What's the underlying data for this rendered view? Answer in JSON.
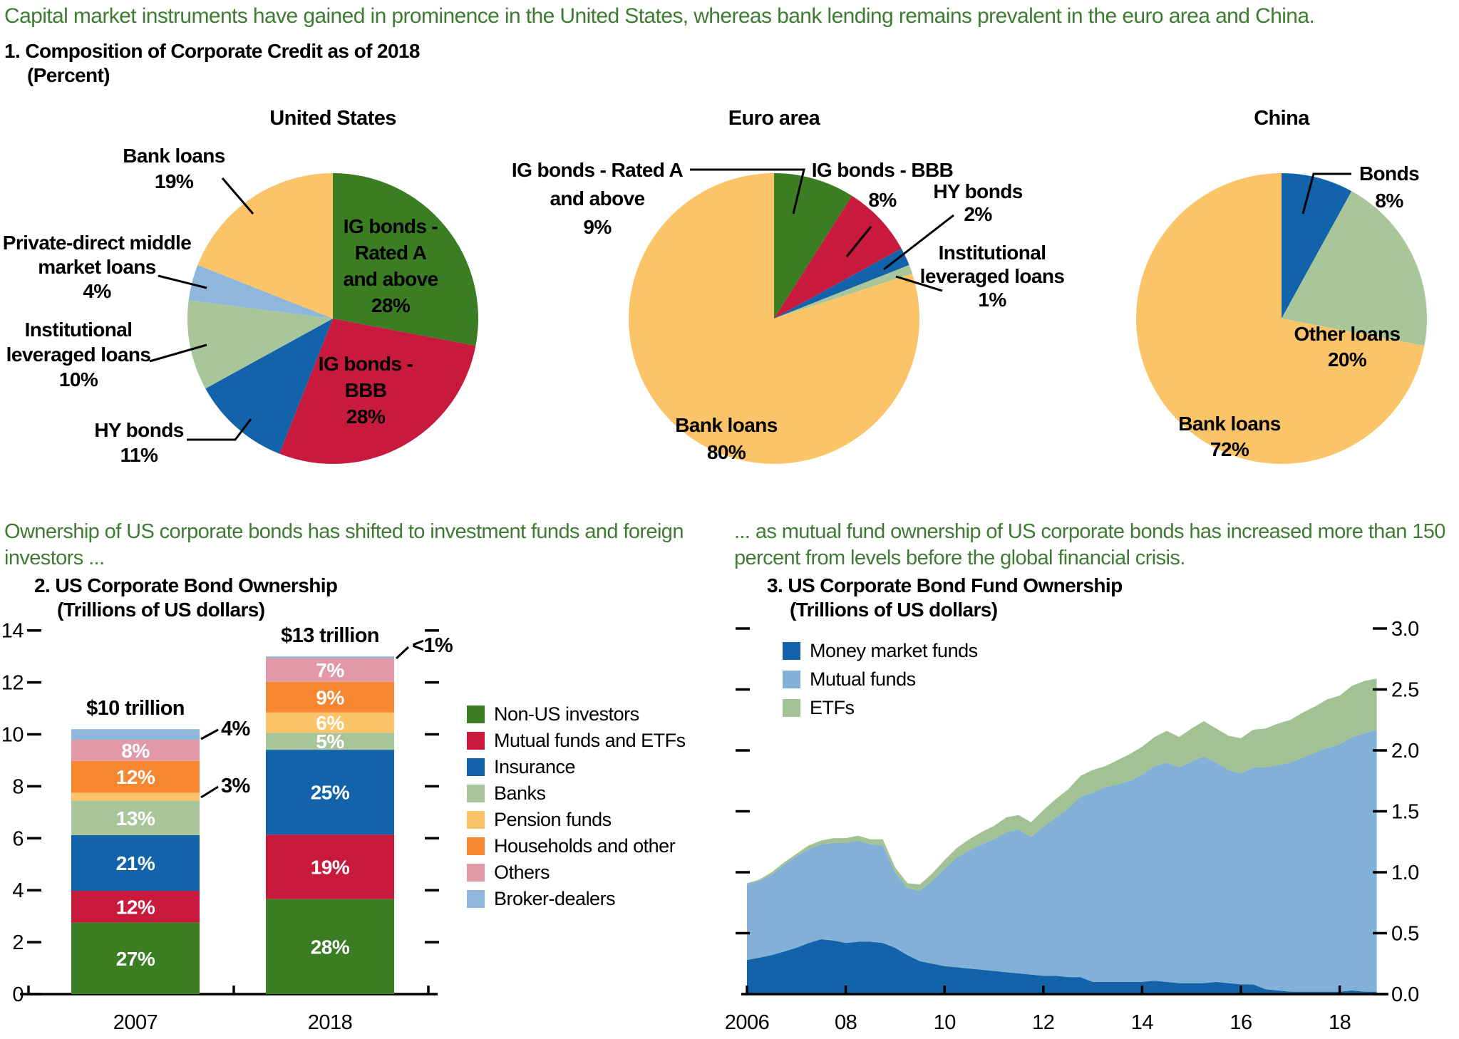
{
  "headline": "Capital market instruments have gained in prominence in the United States, whereas bank lending remains prevalent in the euro area and China.",
  "panel1": {
    "title": "1. Composition of Corporate Credit as of 2018",
    "subtitle": "(Percent)"
  },
  "section2_caption": "Ownership of US corporate bonds has shifted to investment funds and foreign investors ...",
  "section3_caption": "... as mutual fund ownership of US corporate bonds has increased more than 150 percent from levels before the global financial crisis.",
  "panel2": {
    "title": "2. US Corporate Bond Ownership",
    "subtitle": "(Trillions of US dollars)"
  },
  "panel3": {
    "title": "3. US Corporate Bond Fund Ownership",
    "subtitle": "(Trillions of US dollars)"
  },
  "colors": {
    "headline_green": "#3f7c33",
    "palette": {
      "green": "#3a7d23",
      "red": "#c71a3c",
      "blue": "#1263aa",
      "lightGreen": "#a8c69a",
      "amber": "#fbc469",
      "orange": "#f6862f",
      "pink": "#e299a7",
      "lightBlue": "#8fb7db",
      "mutualFundBlue": "#83b0d7",
      "etfGreen": "#a3c294"
    }
  },
  "chart_data": [
    {
      "type": "pie",
      "title": "United States",
      "slices": [
        {
          "label": "IG bonds - Rated A and above",
          "value": 28,
          "color": "green",
          "label_lines": [
            "IG bonds -",
            "Rated A",
            "and above",
            "28%"
          ],
          "label_placement": "inside",
          "label_color": "#ffffff"
        },
        {
          "label": "IG bonds - BBB",
          "value": 28,
          "color": "red",
          "label_lines": [
            "IG bonds -",
            "BBB",
            "28%"
          ],
          "label_placement": "inside",
          "label_color": "#ffffff"
        },
        {
          "label": "HY bonds",
          "value": 11,
          "color": "blue",
          "label_lines": [
            "HY bonds",
            "11%"
          ],
          "label_placement": "outside",
          "label_color": "#000000"
        },
        {
          "label": "Institutional leveraged loans",
          "value": 10,
          "color": "lightGreen",
          "label_lines": [
            "Institutional",
            "leveraged loans",
            "10%"
          ],
          "label_placement": "outside",
          "label_color": "#000000"
        },
        {
          "label": "Private-direct middle market loans",
          "value": 4,
          "color": "lightBlue",
          "label_lines": [
            "Private-direct middle",
            "market loans",
            "4%"
          ],
          "label_placement": "outside",
          "label_color": "#000000"
        },
        {
          "label": "Bank loans",
          "value": 19,
          "color": "amber",
          "label_lines": [
            "Bank loans",
            "19%"
          ],
          "label_placement": "outside",
          "label_color": "#000000"
        }
      ]
    },
    {
      "type": "pie",
      "title": "Euro area",
      "slices": [
        {
          "label": "IG bonds - Rated A and above",
          "value": 9,
          "color": "green",
          "label_lines": [
            "IG bonds - Rated A",
            "and above",
            "9%"
          ],
          "label_placement": "outside",
          "label_color": "#000000"
        },
        {
          "label": "IG bonds - BBB",
          "value": 8,
          "color": "red",
          "label_lines": [
            "IG bonds - BBB",
            "8%"
          ],
          "label_placement": "outside",
          "label_color": "#000000"
        },
        {
          "label": "HY bonds",
          "value": 2,
          "color": "blue",
          "label_lines": [
            "HY bonds",
            "2%"
          ],
          "label_placement": "outside",
          "label_color": "#000000"
        },
        {
          "label": "Institutional leveraged loans",
          "value": 1,
          "color": "lightGreen",
          "label_lines": [
            "Institutional",
            "leveraged loans",
            "1%"
          ],
          "label_placement": "outside",
          "label_color": "#000000"
        },
        {
          "label": "Bank loans",
          "value": 80,
          "color": "amber",
          "label_lines": [
            "Bank loans",
            "80%"
          ],
          "label_placement": "inside",
          "label_color": "#000000"
        }
      ]
    },
    {
      "type": "pie",
      "title": "China",
      "slices": [
        {
          "label": "Bonds",
          "value": 8,
          "color": "blue",
          "label_lines": [
            "Bonds",
            "8%"
          ],
          "label_placement": "outside",
          "label_color": "#000000"
        },
        {
          "label": "Other loans",
          "value": 20,
          "color": "lightGreen",
          "label_lines": [
            "Other loans",
            "20%"
          ],
          "label_placement": "inside",
          "label_color": "#000000"
        },
        {
          "label": "Bank loans",
          "value": 72,
          "color": "amber",
          "label_lines": [
            "Bank loans",
            "72%"
          ],
          "label_placement": "inside",
          "label_color": "#000000"
        }
      ]
    },
    {
      "type": "bar",
      "stacked": true,
      "categories": [
        "2007",
        "2018"
      ],
      "totals": [
        10.2,
        13.0
      ],
      "total_labels": [
        "$10 trillion",
        "$13 trillion"
      ],
      "ylim": [
        0,
        14
      ],
      "yticks": [
        0,
        2,
        4,
        6,
        8,
        10,
        12,
        14
      ],
      "series": [
        {
          "name": "Non-US investors",
          "color": "green",
          "pct": [
            27,
            28
          ],
          "labels": [
            "27%",
            "28%"
          ]
        },
        {
          "name": "Mutual funds and ETFs",
          "color": "red",
          "pct": [
            12,
            19
          ],
          "labels": [
            "12%",
            "19%"
          ]
        },
        {
          "name": "Insurance",
          "color": "blue",
          "pct": [
            21,
            25
          ],
          "labels": [
            "21%",
            "25%"
          ]
        },
        {
          "name": "Banks",
          "color": "lightGreen",
          "pct": [
            13,
            5
          ],
          "labels": [
            "13%",
            "5%"
          ]
        },
        {
          "name": "Pension funds",
          "color": "amber",
          "pct": [
            3,
            6
          ],
          "labels": [
            "3%",
            "6%"
          ]
        },
        {
          "name": "Households and other",
          "color": "orange",
          "pct": [
            12,
            9
          ],
          "labels": [
            "12%",
            "9%"
          ]
        },
        {
          "name": "Others",
          "color": "pink",
          "pct": [
            8,
            7
          ],
          "labels": [
            "8%",
            "7%"
          ]
        },
        {
          "name": "Broker-dealers",
          "color": "lightBlue",
          "pct": [
            4,
            0.5
          ],
          "labels": [
            "4%",
            "<1%"
          ]
        }
      ],
      "callouts": [
        {
          "category": 0,
          "series": 4,
          "text": "3%"
        },
        {
          "category": 0,
          "series": 7,
          "text": "4%"
        },
        {
          "category": 1,
          "series": 7,
          "text": "<1%"
        }
      ]
    },
    {
      "type": "area",
      "stacked": true,
      "xticks": [
        "2006",
        "08",
        "10",
        "12",
        "14",
        "16",
        "18"
      ],
      "xtick_years": [
        2006,
        2008,
        2010,
        2012,
        2014,
        2016,
        2018
      ],
      "ylim": [
        0,
        3
      ],
      "yticks_right": [
        "0.0",
        "0.5",
        "1.0",
        "1.5",
        "2.0",
        "2.5",
        "3.0"
      ],
      "x": [
        2006,
        2006.25,
        2006.5,
        2006.75,
        2007,
        2007.25,
        2007.5,
        2007.75,
        2008,
        2008.25,
        2008.5,
        2008.75,
        2009,
        2009.25,
        2009.5,
        2009.75,
        2010,
        2010.25,
        2010.5,
        2010.75,
        2011,
        2011.25,
        2011.5,
        2011.75,
        2012,
        2012.25,
        2012.5,
        2012.75,
        2013,
        2013.25,
        2013.5,
        2013.75,
        2014,
        2014.25,
        2014.5,
        2014.75,
        2015,
        2015.25,
        2015.5,
        2015.75,
        2016,
        2016.25,
        2016.5,
        2016.75,
        2017,
        2017.25,
        2017.5,
        2017.75,
        2018,
        2018.25,
        2018.5,
        2018.75
      ],
      "series": [
        {
          "name": "Money market funds",
          "color": "blue",
          "values": [
            0.28,
            0.3,
            0.32,
            0.35,
            0.38,
            0.42,
            0.45,
            0.44,
            0.42,
            0.43,
            0.43,
            0.42,
            0.38,
            0.32,
            0.27,
            0.25,
            0.23,
            0.22,
            0.21,
            0.2,
            0.19,
            0.18,
            0.17,
            0.16,
            0.15,
            0.15,
            0.14,
            0.14,
            0.1,
            0.1,
            0.1,
            0.1,
            0.1,
            0.11,
            0.1,
            0.09,
            0.09,
            0.09,
            0.1,
            0.09,
            0.08,
            0.08,
            0.04,
            0.03,
            0.02,
            0.02,
            0.02,
            0.02,
            0.02,
            0.03,
            0.02,
            0.02
          ]
        },
        {
          "name": "Mutual funds",
          "color": "mutualFundBlue",
          "values": [
            0.62,
            0.63,
            0.66,
            0.71,
            0.75,
            0.77,
            0.78,
            0.8,
            0.82,
            0.83,
            0.8,
            0.8,
            0.62,
            0.55,
            0.58,
            0.68,
            0.8,
            0.9,
            0.97,
            1.03,
            1.08,
            1.15,
            1.18,
            1.13,
            1.22,
            1.3,
            1.38,
            1.48,
            1.55,
            1.6,
            1.62,
            1.65,
            1.7,
            1.76,
            1.8,
            1.77,
            1.82,
            1.86,
            1.8,
            1.75,
            1.73,
            1.78,
            1.82,
            1.85,
            1.88,
            1.92,
            1.96,
            2.0,
            2.03,
            2.08,
            2.12,
            2.15
          ]
        },
        {
          "name": "ETFs",
          "color": "etfGreen",
          "values": [
            0.01,
            0.01,
            0.02,
            0.02,
            0.02,
            0.03,
            0.03,
            0.04,
            0.04,
            0.04,
            0.04,
            0.05,
            0.04,
            0.04,
            0.05,
            0.06,
            0.07,
            0.08,
            0.09,
            0.1,
            0.11,
            0.12,
            0.12,
            0.12,
            0.14,
            0.15,
            0.16,
            0.17,
            0.19,
            0.17,
            0.2,
            0.22,
            0.23,
            0.24,
            0.26,
            0.25,
            0.27,
            0.29,
            0.28,
            0.28,
            0.29,
            0.31,
            0.32,
            0.34,
            0.35,
            0.37,
            0.38,
            0.4,
            0.4,
            0.42,
            0.43,
            0.42
          ]
        }
      ]
    }
  ]
}
